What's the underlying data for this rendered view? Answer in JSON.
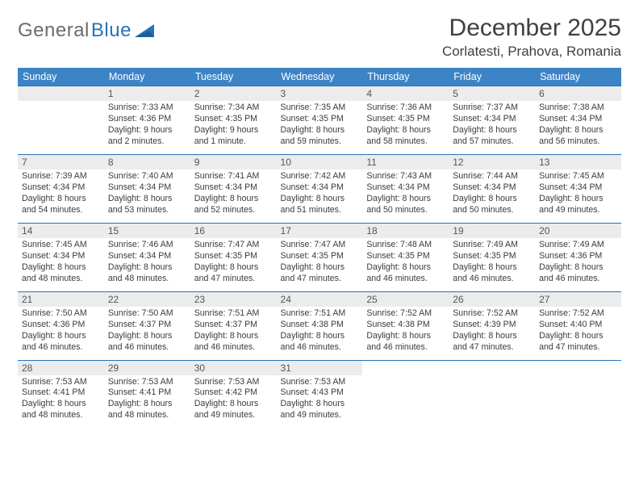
{
  "brand": {
    "part1": "General",
    "part2": "Blue"
  },
  "title": "December 2025",
  "location": "Corlatesti, Prahova, Romania",
  "colors": {
    "header_bg": "#3d84c6",
    "row_border": "#2a72b5",
    "daynum_bg": "#ececec",
    "text": "#3b3b3b",
    "brand_gray": "#6b6b6b",
    "brand_blue": "#2a72b5",
    "background": "#ffffff"
  },
  "typography": {
    "title_fontsize": 30,
    "location_fontsize": 17,
    "header_fontsize": 12.5,
    "daynum_fontsize": 12,
    "body_fontsize": 10.6
  },
  "weekdays": [
    "Sunday",
    "Monday",
    "Tuesday",
    "Wednesday",
    "Thursday",
    "Friday",
    "Saturday"
  ],
  "first_weekday_index": 1,
  "days": [
    {
      "n": 1,
      "sr": "7:33 AM",
      "ss": "4:36 PM",
      "dl": "9 hours and 2 minutes."
    },
    {
      "n": 2,
      "sr": "7:34 AM",
      "ss": "4:35 PM",
      "dl": "9 hours and 1 minute."
    },
    {
      "n": 3,
      "sr": "7:35 AM",
      "ss": "4:35 PM",
      "dl": "8 hours and 59 minutes."
    },
    {
      "n": 4,
      "sr": "7:36 AM",
      "ss": "4:35 PM",
      "dl": "8 hours and 58 minutes."
    },
    {
      "n": 5,
      "sr": "7:37 AM",
      "ss": "4:34 PM",
      "dl": "8 hours and 57 minutes."
    },
    {
      "n": 6,
      "sr": "7:38 AM",
      "ss": "4:34 PM",
      "dl": "8 hours and 56 minutes."
    },
    {
      "n": 7,
      "sr": "7:39 AM",
      "ss": "4:34 PM",
      "dl": "8 hours and 54 minutes."
    },
    {
      "n": 8,
      "sr": "7:40 AM",
      "ss": "4:34 PM",
      "dl": "8 hours and 53 minutes."
    },
    {
      "n": 9,
      "sr": "7:41 AM",
      "ss": "4:34 PM",
      "dl": "8 hours and 52 minutes."
    },
    {
      "n": 10,
      "sr": "7:42 AM",
      "ss": "4:34 PM",
      "dl": "8 hours and 51 minutes."
    },
    {
      "n": 11,
      "sr": "7:43 AM",
      "ss": "4:34 PM",
      "dl": "8 hours and 50 minutes."
    },
    {
      "n": 12,
      "sr": "7:44 AM",
      "ss": "4:34 PM",
      "dl": "8 hours and 50 minutes."
    },
    {
      "n": 13,
      "sr": "7:45 AM",
      "ss": "4:34 PM",
      "dl": "8 hours and 49 minutes."
    },
    {
      "n": 14,
      "sr": "7:45 AM",
      "ss": "4:34 PM",
      "dl": "8 hours and 48 minutes."
    },
    {
      "n": 15,
      "sr": "7:46 AM",
      "ss": "4:34 PM",
      "dl": "8 hours and 48 minutes."
    },
    {
      "n": 16,
      "sr": "7:47 AM",
      "ss": "4:35 PM",
      "dl": "8 hours and 47 minutes."
    },
    {
      "n": 17,
      "sr": "7:47 AM",
      "ss": "4:35 PM",
      "dl": "8 hours and 47 minutes."
    },
    {
      "n": 18,
      "sr": "7:48 AM",
      "ss": "4:35 PM",
      "dl": "8 hours and 46 minutes."
    },
    {
      "n": 19,
      "sr": "7:49 AM",
      "ss": "4:35 PM",
      "dl": "8 hours and 46 minutes."
    },
    {
      "n": 20,
      "sr": "7:49 AM",
      "ss": "4:36 PM",
      "dl": "8 hours and 46 minutes."
    },
    {
      "n": 21,
      "sr": "7:50 AM",
      "ss": "4:36 PM",
      "dl": "8 hours and 46 minutes."
    },
    {
      "n": 22,
      "sr": "7:50 AM",
      "ss": "4:37 PM",
      "dl": "8 hours and 46 minutes."
    },
    {
      "n": 23,
      "sr": "7:51 AM",
      "ss": "4:37 PM",
      "dl": "8 hours and 46 minutes."
    },
    {
      "n": 24,
      "sr": "7:51 AM",
      "ss": "4:38 PM",
      "dl": "8 hours and 46 minutes."
    },
    {
      "n": 25,
      "sr": "7:52 AM",
      "ss": "4:38 PM",
      "dl": "8 hours and 46 minutes."
    },
    {
      "n": 26,
      "sr": "7:52 AM",
      "ss": "4:39 PM",
      "dl": "8 hours and 47 minutes."
    },
    {
      "n": 27,
      "sr": "7:52 AM",
      "ss": "4:40 PM",
      "dl": "8 hours and 47 minutes."
    },
    {
      "n": 28,
      "sr": "7:53 AM",
      "ss": "4:41 PM",
      "dl": "8 hours and 48 minutes."
    },
    {
      "n": 29,
      "sr": "7:53 AM",
      "ss": "4:41 PM",
      "dl": "8 hours and 48 minutes."
    },
    {
      "n": 30,
      "sr": "7:53 AM",
      "ss": "4:42 PM",
      "dl": "8 hours and 49 minutes."
    },
    {
      "n": 31,
      "sr": "7:53 AM",
      "ss": "4:43 PM",
      "dl": "8 hours and 49 minutes."
    }
  ],
  "labels": {
    "sunrise": "Sunrise:",
    "sunset": "Sunset:",
    "daylight": "Daylight:"
  }
}
